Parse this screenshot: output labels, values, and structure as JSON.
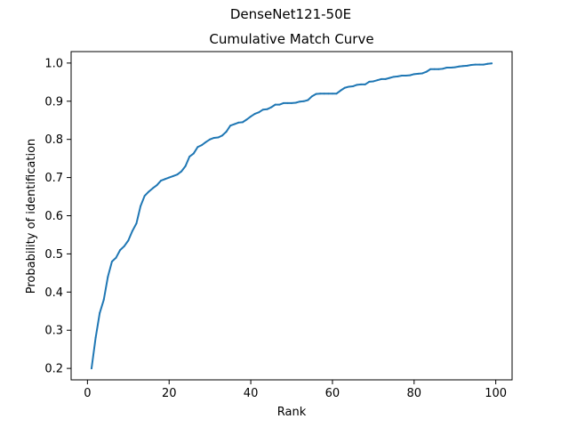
{
  "chart_data": {
    "type": "line",
    "suptitle": "DenseNet121-50E",
    "title": "Cumulative Match Curve",
    "xlabel": "Rank",
    "ylabel": "Probability of identification",
    "xlim": [
      -4,
      104
    ],
    "ylim": [
      0.17,
      1.03
    ],
    "xticks": [
      0,
      20,
      40,
      60,
      80,
      100
    ],
    "yticks": [
      0.2,
      0.3,
      0.4,
      0.5,
      0.6,
      0.7,
      0.8,
      0.9,
      1.0
    ],
    "xtick_labels": [
      "0",
      "20",
      "40",
      "60",
      "80",
      "100"
    ],
    "ytick_labels": [
      "0.2",
      "0.3",
      "0.4",
      "0.5",
      "0.6",
      "0.7",
      "0.8",
      "0.9",
      "1.0"
    ],
    "grid": false,
    "legend": null,
    "color": "#1f77b4",
    "x": [
      1,
      2,
      3,
      4,
      5,
      6,
      7,
      8,
      9,
      10,
      11,
      12,
      13,
      14,
      15,
      16,
      17,
      18,
      19,
      20,
      21,
      22,
      23,
      24,
      25,
      26,
      27,
      28,
      29,
      30,
      31,
      32,
      33,
      34,
      35,
      36,
      37,
      38,
      39,
      40,
      41,
      42,
      43,
      44,
      45,
      46,
      47,
      48,
      49,
      50,
      51,
      52,
      53,
      54,
      55,
      56,
      57,
      58,
      59,
      60,
      61,
      62,
      63,
      64,
      65,
      66,
      67,
      68,
      69,
      70,
      71,
      72,
      73,
      74,
      75,
      76,
      77,
      78,
      79,
      80,
      81,
      82,
      83,
      84,
      85,
      86,
      87,
      88,
      89,
      90,
      91,
      92,
      93,
      94,
      95,
      96,
      97,
      98,
      99
    ],
    "y": [
      0.2,
      0.28,
      0.345,
      0.38,
      0.44,
      0.48,
      0.49,
      0.51,
      0.52,
      0.535,
      0.56,
      0.58,
      0.625,
      0.652,
      0.663,
      0.672,
      0.68,
      0.692,
      0.696,
      0.7,
      0.704,
      0.708,
      0.716,
      0.73,
      0.755,
      0.763,
      0.78,
      0.785,
      0.793,
      0.8,
      0.804,
      0.805,
      0.81,
      0.82,
      0.836,
      0.84,
      0.844,
      0.845,
      0.852,
      0.86,
      0.867,
      0.871,
      0.878,
      0.879,
      0.884,
      0.891,
      0.891,
      0.895,
      0.895,
      0.895,
      0.896,
      0.899,
      0.9,
      0.903,
      0.913,
      0.919,
      0.92,
      0.92,
      0.92,
      0.92,
      0.92,
      0.928,
      0.935,
      0.938,
      0.939,
      0.943,
      0.944,
      0.944,
      0.951,
      0.952,
      0.955,
      0.958,
      0.958,
      0.961,
      0.964,
      0.965,
      0.967,
      0.967,
      0.968,
      0.971,
      0.972,
      0.973,
      0.977,
      0.984,
      0.984,
      0.984,
      0.985,
      0.988,
      0.988,
      0.989,
      0.991,
      0.992,
      0.993,
      0.995,
      0.996,
      0.996,
      0.996,
      0.998,
      0.999
    ]
  }
}
